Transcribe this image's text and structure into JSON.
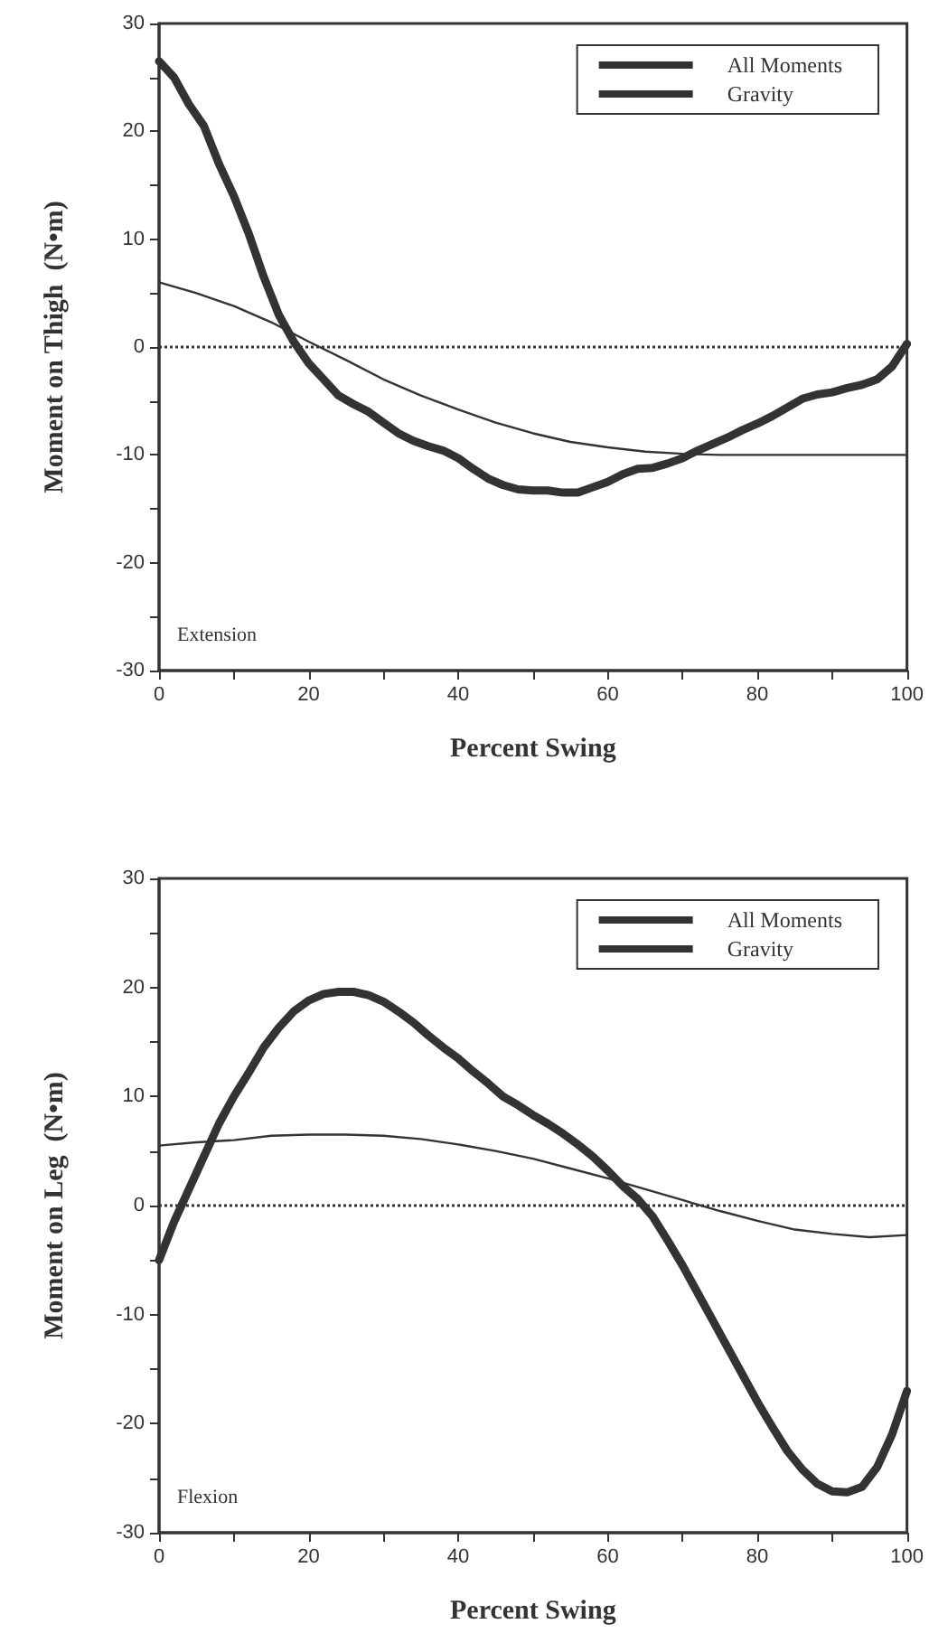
{
  "chart_data": [
    {
      "type": "line",
      "xlabel": "Percent Swing",
      "ylabel": "Moment on Thigh  (N•m)",
      "annotations": [
        "Extension"
      ],
      "xlim": [
        0,
        100
      ],
      "ylim": [
        -30,
        30
      ],
      "xticks": [
        0,
        {
          "value": 10,
          "label": null
        },
        20,
        {
          "value": 30,
          "label": null
        },
        40,
        {
          "value": 50,
          "label": null
        },
        60,
        {
          "value": 70,
          "label": null
        },
        80,
        {
          "value": 90,
          "label": null
        },
        100
      ],
      "yticks": [
        -30,
        {
          "value": -25,
          "label": null
        },
        -20,
        {
          "value": -15,
          "label": null
        },
        -10,
        {
          "value": -5,
          "label": null
        },
        0,
        {
          "value": 5,
          "label": null
        },
        10,
        {
          "value": 15,
          "label": null
        },
        20,
        {
          "value": 25,
          "label": null
        },
        30
      ],
      "legend": "top right",
      "grid": false,
      "marker": "none",
      "ref_lines": [
        {
          "axis": "y",
          "value": 0,
          "line_style": "dotted",
          "color": "#333333"
        }
      ],
      "series": [
        {
          "name": "All Moments",
          "color": "#333333",
          "x": [
            0,
            2,
            4,
            6,
            8,
            10,
            12,
            14,
            16,
            18,
            20,
            22,
            24,
            26,
            28,
            30,
            32,
            34,
            36,
            38,
            40,
            42,
            44,
            46,
            48,
            50,
            52,
            54,
            56,
            58,
            60,
            62,
            64,
            66,
            68,
            70,
            72,
            74,
            76,
            78,
            80,
            82,
            84,
            86,
            88,
            90,
            92,
            94,
            96,
            98,
            100
          ],
          "values": [
            26.5,
            25,
            22.5,
            20.5,
            17,
            14,
            10.5,
            6.5,
            3,
            0.5,
            -1.5,
            -3,
            -4.5,
            -5.3,
            -6,
            -7,
            -8,
            -8.7,
            -9.2,
            -9.6,
            -10.3,
            -11.3,
            -12.2,
            -12.8,
            -13.2,
            -13.3,
            -13.3,
            -13.5,
            -13.5,
            -13,
            -12.5,
            -11.8,
            -11.3,
            -11.2,
            -10.8,
            -10.3,
            -9.6,
            -9,
            -8.4,
            -7.7,
            -7.1,
            -6.4,
            -5.6,
            -4.8,
            -4.4,
            -4.2,
            -3.8,
            -3.5,
            -3,
            -1.8,
            0.3
          ]
        },
        {
          "name": "Gravity",
          "color": "#333333",
          "x": [
            0,
            5,
            10,
            15,
            20,
            25,
            30,
            35,
            40,
            45,
            50,
            55,
            60,
            65,
            70,
            75,
            80,
            90,
            100
          ],
          "values": [
            6,
            5,
            3.8,
            2.3,
            0.5,
            -1.2,
            -3,
            -4.5,
            -5.8,
            -7,
            -8,
            -8.8,
            -9.3,
            -9.7,
            -9.9,
            -10,
            -10,
            -10,
            -10
          ]
        }
      ]
    },
    {
      "type": "line",
      "xlabel": "Percent Swing",
      "ylabel": "Moment on Leg  (N•m)",
      "annotations": [
        "Flexion"
      ],
      "xlim": [
        0,
        100
      ],
      "ylim": [
        -30,
        30
      ],
      "xticks": [
        0,
        {
          "value": 10,
          "label": null
        },
        20,
        {
          "value": 30,
          "label": null
        },
        40,
        {
          "value": 50,
          "label": null
        },
        60,
        {
          "value": 70,
          "label": null
        },
        80,
        {
          "value": 90,
          "label": null
        },
        100
      ],
      "yticks": [
        -30,
        {
          "value": -25,
          "label": null
        },
        -20,
        {
          "value": -15,
          "label": null
        },
        -10,
        {
          "value": -5,
          "label": null
        },
        0,
        {
          "value": 5,
          "label": null
        },
        10,
        {
          "value": 15,
          "label": null
        },
        20,
        {
          "value": 25,
          "label": null
        },
        30
      ],
      "legend": "top right",
      "grid": false,
      "marker": "none",
      "ref_lines": [
        {
          "axis": "y",
          "value": 0,
          "line_style": "dotted",
          "color": "#333333"
        }
      ],
      "series": [
        {
          "name": "All Moments",
          "color": "#333333",
          "x": [
            0,
            2,
            4,
            6,
            8,
            10,
            12,
            14,
            16,
            18,
            20,
            22,
            24,
            26,
            28,
            30,
            32,
            34,
            36,
            38,
            40,
            42,
            44,
            46,
            48,
            50,
            52,
            54,
            56,
            58,
            60,
            62,
            64,
            66,
            68,
            70,
            72,
            74,
            76,
            78,
            80,
            82,
            84,
            86,
            88,
            90,
            92,
            94,
            96,
            98,
            100
          ],
          "values": [
            -5,
            -1.5,
            1.5,
            4.5,
            7.5,
            10,
            12.2,
            14.5,
            16.3,
            17.8,
            18.8,
            19.4,
            19.6,
            19.6,
            19.3,
            18.7,
            17.8,
            16.8,
            15.6,
            14.5,
            13.5,
            12.3,
            11.2,
            10,
            9.2,
            8.3,
            7.5,
            6.6,
            5.6,
            4.5,
            3.2,
            1.8,
            0.6,
            -1,
            -3.2,
            -5.5,
            -8,
            -10.5,
            -13,
            -15.5,
            -18,
            -20.3,
            -22.5,
            -24.2,
            -25.5,
            -26.2,
            -26.3,
            -25.8,
            -24,
            -21,
            -17
          ]
        },
        {
          "name": "Gravity",
          "color": "#333333",
          "x": [
            0,
            5,
            10,
            15,
            20,
            25,
            30,
            35,
            40,
            45,
            50,
            55,
            60,
            65,
            70,
            75,
            80,
            85,
            90,
            95,
            100
          ],
          "values": [
            5.5,
            5.8,
            6,
            6.4,
            6.5,
            6.5,
            6.4,
            6.1,
            5.6,
            5,
            4.3,
            3.4,
            2.5,
            1.5,
            0.5,
            -0.5,
            -1.4,
            -2.2,
            -2.6,
            -2.9,
            -2.7
          ]
        }
      ]
    }
  ]
}
